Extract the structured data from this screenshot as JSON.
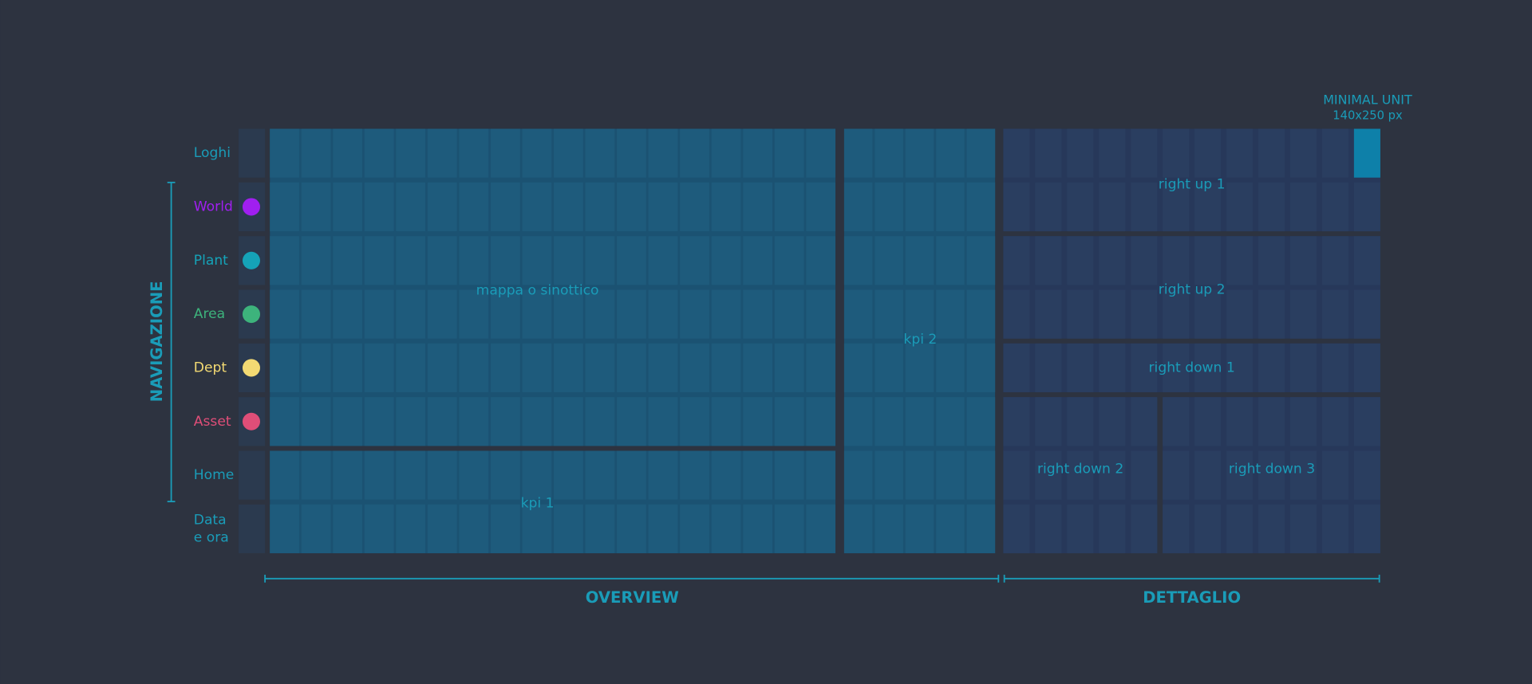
{
  "navigation": {
    "title": "NAVIGAZIONE",
    "rows": [
      {
        "label": "Loghi"
      },
      {
        "label": "World"
      },
      {
        "label": "Plant"
      },
      {
        "label": "Area"
      },
      {
        "label": "Dept"
      },
      {
        "label": "Asset"
      },
      {
        "label": "Home"
      },
      {
        "lines": [
          "Data",
          "e ora"
        ]
      }
    ]
  },
  "blocks": [
    {
      "label": "mappa o sinottico"
    },
    {
      "label": "kpi 1"
    },
    {
      "label": "kpi 2"
    },
    {
      "label": "right up 1"
    },
    {
      "label": "right up 2"
    },
    {
      "label": "right down 1"
    },
    {
      "label": "right down 2"
    },
    {
      "label": "right down 3"
    }
  ],
  "sections": [
    {
      "label": "OVERVIEW"
    },
    {
      "label": "DETTAGLIO"
    }
  ],
  "minimal_unit": {
    "title": "MINIMAL UNIT",
    "size": "140x250 px"
  }
}
